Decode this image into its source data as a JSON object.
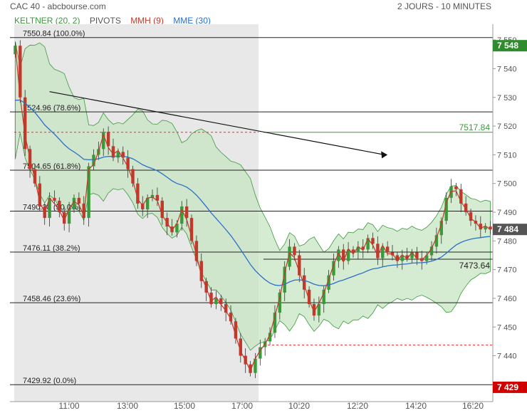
{
  "header": {
    "title": "CAC 40 - abcbourse.com",
    "period": "2 JOURS - 10 MINUTES"
  },
  "legend": [
    {
      "label": "KELTNER (20, 2)",
      "color": "#3a9a3a"
    },
    {
      "label": "PIVOTS",
      "color": "#555555"
    },
    {
      "label": "MMH (9)",
      "color": "#c0392b"
    },
    {
      "label": "MME (30)",
      "color": "#2a6fc9"
    }
  ],
  "colors": {
    "bull": "#3a9a3a",
    "bear": "#c0392b",
    "band_fill": "#c8e6c3",
    "band_line": "#3a9a3a",
    "mmh": "#c0392b",
    "mme": "#2a6fc9",
    "shade": "#e8e8e8",
    "last_price_bg": "#555555",
    "high_bg": "#2e8b2e",
    "low_bg": "#d10000"
  },
  "price_tags": {
    "high": "7 548",
    "last": "7 484",
    "low": "7 429",
    "pivot_green": "7517.84",
    "pivot_day2": "7473.64"
  },
  "chart_data": {
    "type": "candlestick",
    "ylim": [
      7426,
      7554
    ],
    "yticks": [
      "7 550",
      "7 540",
      "7 530",
      "7 520",
      "7 510",
      "7 500",
      "7 490",
      "7 480",
      "7 470",
      "7 460",
      "7 450",
      "7 440",
      "7 430"
    ],
    "ytick_values": [
      7550,
      7540,
      7530,
      7520,
      7510,
      7500,
      7490,
      7480,
      7470,
      7460,
      7450,
      7440,
      7430
    ],
    "xticks": [
      "11:00",
      "13:00",
      "15:00",
      "17:00",
      "10:20",
      "12:20",
      "14:20",
      "16:20"
    ],
    "fibonacci": [
      {
        "label": "7550.84  (100.0%)",
        "value": 7550.84
      },
      {
        "label": "7524.96  (78.6%)",
        "value": 7524.96
      },
      {
        "label": "7504.65  (61.8%)",
        "value": 7504.65
      },
      {
        "label": "7490.38  (50.0%)",
        "value": 7490.38
      },
      {
        "label": "7476.11  (38.2%)",
        "value": 7476.11
      },
      {
        "label": "7458.46  (23.6%)",
        "value": 7458.46
      },
      {
        "label": "7429.92  (0.0%)",
        "value": 7429.92
      }
    ],
    "pivots": [
      {
        "day": 1,
        "value": 7517.84
      },
      {
        "day": 2,
        "value": 7517.84
      },
      {
        "day": 2,
        "value": 7473.64
      },
      {
        "day": 2,
        "value": 7443.7
      }
    ],
    "trend_arrow": {
      "from": [
        7,
        7532
      ],
      "to": [
        76,
        7510
      ]
    },
    "closes": [
      7548,
      7530,
      7512,
      7505,
      7500,
      7492,
      7488,
      7495,
      7494,
      7490,
      7486,
      7491,
      7495,
      7493,
      7488,
      7506,
      7510,
      7512,
      7518,
      7513,
      7509,
      7511,
      7509,
      7505,
      7500,
      7493,
      7491,
      7495,
      7496,
      7494,
      7488,
      7485,
      7483,
      7486,
      7492,
      7488,
      7480,
      7473,
      7466,
      7462,
      7458,
      7460,
      7458,
      7455,
      7452,
      7446,
      7440,
      7437,
      7434,
      7439,
      7443,
      7445,
      7448,
      7455,
      7462,
      7471,
      7478,
      7475,
      7468,
      7463,
      7458,
      7454,
      7458,
      7463,
      7468,
      7473,
      7477,
      7473,
      7477,
      7476,
      7478,
      7477,
      7481,
      7479,
      7474,
      7478,
      7476,
      7475,
      7473,
      7475,
      7474,
      7476,
      7474,
      7473,
      7475,
      7478,
      7482,
      7487,
      7495,
      7499,
      7498,
      7493,
      7490,
      7487,
      7486,
      7484,
      7485,
      7484
    ]
  }
}
